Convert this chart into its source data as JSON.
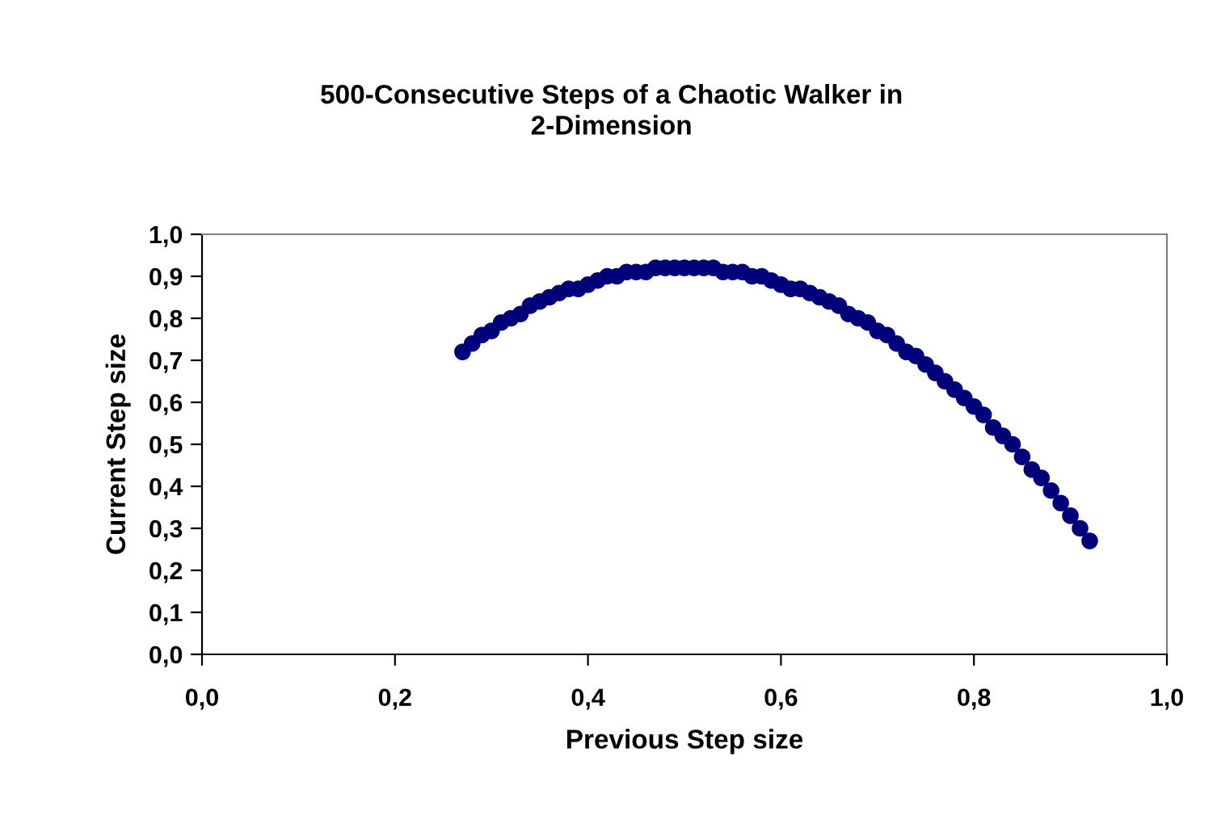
{
  "chart_data": {
    "type": "scatter",
    "title": "500-Consecutive Steps of a Chaotic Walker in\n2-Dimension",
    "xlabel": "Previous Step size",
    "ylabel": "Current Step size",
    "x": [
      0.27,
      0.28,
      0.29,
      0.3,
      0.31,
      0.32,
      0.33,
      0.34,
      0.35,
      0.36,
      0.37,
      0.38,
      0.39,
      0.4,
      0.41,
      0.42,
      0.43,
      0.44,
      0.45,
      0.46,
      0.47,
      0.48,
      0.49,
      0.5,
      0.51,
      0.52,
      0.53,
      0.54,
      0.55,
      0.56,
      0.57,
      0.58,
      0.59,
      0.6,
      0.61,
      0.62,
      0.63,
      0.64,
      0.65,
      0.66,
      0.67,
      0.68,
      0.69,
      0.7,
      0.71,
      0.72,
      0.73,
      0.74,
      0.75,
      0.76,
      0.77,
      0.78,
      0.79,
      0.8,
      0.81,
      0.82,
      0.83,
      0.84,
      0.85,
      0.86,
      0.87,
      0.88,
      0.89,
      0.9,
      0.91,
      0.92
    ],
    "series": [
      {
        "color": "#00007a",
        "values": [
          0.72,
          0.74,
          0.76,
          0.77,
          0.79,
          0.8,
          0.81,
          0.83,
          0.84,
          0.85,
          0.86,
          0.87,
          0.87,
          0.88,
          0.89,
          0.9,
          0.9,
          0.91,
          0.91,
          0.91,
          0.92,
          0.92,
          0.92,
          0.92,
          0.92,
          0.92,
          0.92,
          0.91,
          0.91,
          0.91,
          0.9,
          0.9,
          0.89,
          0.88,
          0.87,
          0.87,
          0.86,
          0.85,
          0.84,
          0.83,
          0.81,
          0.8,
          0.79,
          0.77,
          0.76,
          0.74,
          0.72,
          0.71,
          0.69,
          0.67,
          0.65,
          0.63,
          0.61,
          0.59,
          0.57,
          0.54,
          0.52,
          0.5,
          0.47,
          0.44,
          0.42,
          0.39,
          0.36,
          0.33,
          0.3,
          0.27
        ]
      }
    ],
    "marker": "circle",
    "grid": false,
    "legend": false,
    "xlim": [
      0,
      1
    ],
    "xticks": [
      {
        "value": 0,
        "label": "0,0"
      },
      {
        "value": 0.2,
        "label": "0,2"
      },
      {
        "value": 0.4,
        "label": "0,4"
      },
      {
        "value": 0.6,
        "label": "0,6"
      },
      {
        "value": 0.8,
        "label": "0,8"
      },
      {
        "value": 1,
        "label": "1,0"
      }
    ],
    "ylim": [
      0,
      1
    ],
    "yticks": [
      {
        "value": 0,
        "label": "0,0"
      },
      {
        "value": 0.1,
        "label": "0,1"
      },
      {
        "value": 0.2,
        "label": "0,2"
      },
      {
        "value": 0.3,
        "label": "0,3"
      },
      {
        "value": 0.4,
        "label": "0,4"
      },
      {
        "value": 0.5,
        "label": "0,5"
      },
      {
        "value": 0.6,
        "label": "0,6"
      },
      {
        "value": 0.7,
        "label": "0,7"
      },
      {
        "value": 0.8,
        "label": "0,8"
      },
      {
        "value": 0.9,
        "label": "0,9"
      },
      {
        "value": 1,
        "label": "1,0"
      }
    ]
  }
}
